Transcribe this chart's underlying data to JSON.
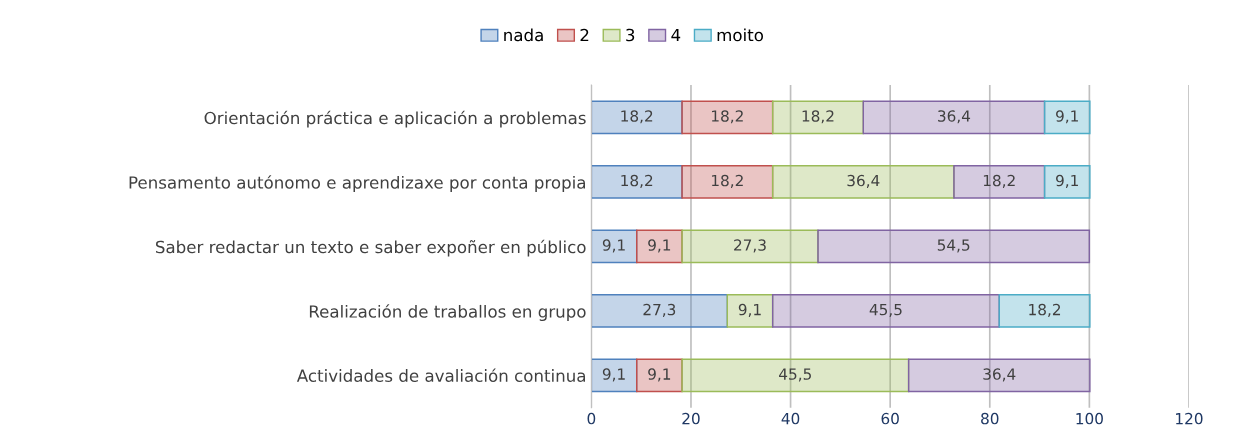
{
  "chart_data": {
    "type": "bar",
    "orientation": "horizontal",
    "stacked": true,
    "categories": [
      "Orientación práctica e aplicación a problemas",
      "Pensamento autónomo e aprendizaxe por conta propia",
      "Saber redactar un texto e saber expoñer en público",
      "Realización de traballos en grupo",
      "Actividades de avaliación continua"
    ],
    "series": [
      {
        "name": "nada",
        "color": "#4f81bd",
        "values": [
          18.2,
          18.2,
          9.1,
          27.3,
          9.1
        ],
        "value_labels": [
          "18,2",
          "18,2",
          "9,1",
          "27,3",
          "9,1"
        ]
      },
      {
        "name": "2",
        "color": "#c0504d",
        "values": [
          18.2,
          18.2,
          9.1,
          null,
          9.1
        ],
        "value_labels": [
          "18,2",
          "18,2",
          "9,1",
          null,
          "9,1"
        ]
      },
      {
        "name": "3",
        "color": "#9bbb59",
        "values": [
          18.2,
          36.4,
          27.3,
          9.1,
          45.5
        ],
        "value_labels": [
          "18,2",
          "36,4",
          "27,3",
          "9,1",
          "45,5"
        ]
      },
      {
        "name": "4",
        "color": "#8064a2",
        "values": [
          36.4,
          18.2,
          54.5,
          45.5,
          36.4
        ],
        "value_labels": [
          "36,4",
          "18,2",
          "54,5",
          "45,5",
          "36,4"
        ]
      },
      {
        "name": "moito",
        "color": "#4bacc6",
        "values": [
          9.1,
          9.1,
          null,
          18.2,
          null
        ],
        "value_labels": [
          "9,1",
          "9,1",
          null,
          "18,2",
          null
        ]
      }
    ],
    "xlim": [
      0,
      120
    ],
    "xticks": [
      0,
      20,
      40,
      60,
      80,
      100,
      120
    ],
    "grid": "x",
    "legend": "top"
  }
}
